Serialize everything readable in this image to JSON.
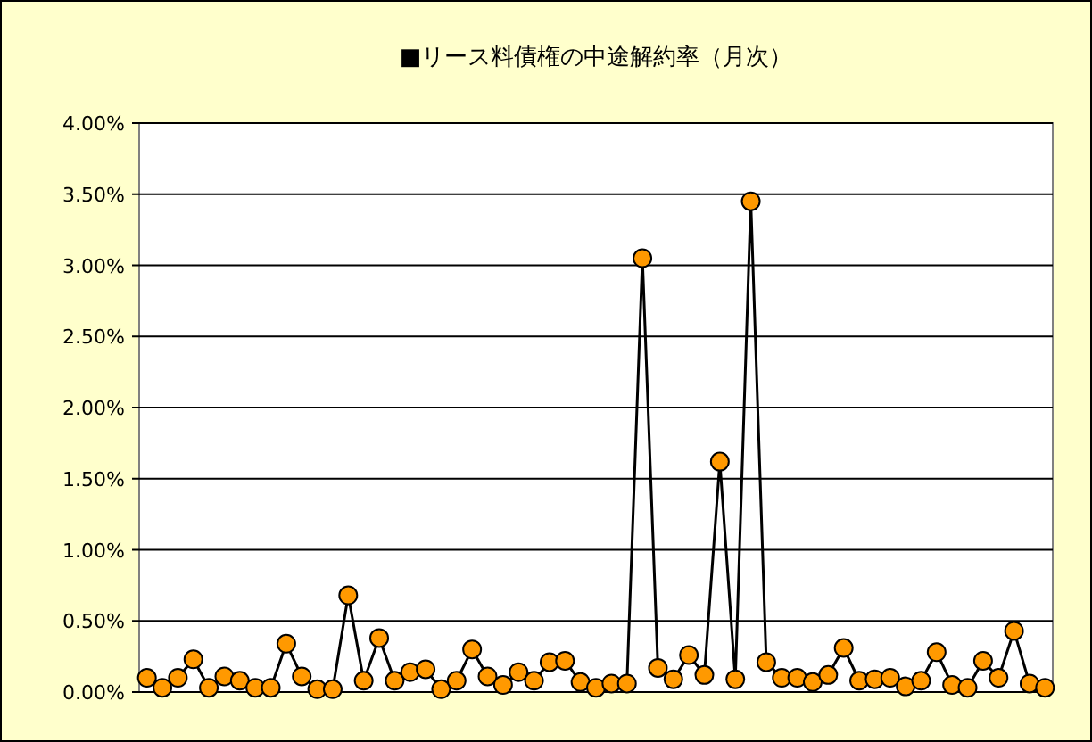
{
  "chart_data": {
    "type": "line",
    "title": "■リース料債権の中途解約率（月次）",
    "categories": [
      null,
      null,
      null,
      null,
      null,
      null,
      null,
      null,
      null,
      null,
      null,
      null,
      null,
      null,
      null,
      null,
      null,
      null,
      null,
      null,
      null,
      null,
      null,
      null,
      null,
      null,
      null,
      null,
      null,
      null,
      null,
      null,
      null,
      null,
      null,
      null,
      null,
      null,
      null,
      null,
      null,
      null,
      null,
      null,
      null,
      null,
      null,
      null,
      null,
      null,
      null,
      null,
      null,
      null,
      null,
      null,
      null,
      null,
      null
    ],
    "series": [
      {
        "color": "#ff9900",
        "values": [
          0.1,
          0.03,
          0.1,
          0.23,
          0.03,
          0.11,
          0.08,
          0.03,
          0.03,
          0.34,
          0.11,
          0.02,
          0.02,
          0.68,
          0.08,
          0.38,
          0.08,
          0.14,
          0.16,
          0.02,
          0.08,
          0.3,
          0.11,
          0.05,
          0.14,
          0.08,
          0.21,
          0.22,
          0.07,
          0.03,
          0.06,
          0.06,
          3.05,
          0.17,
          0.09,
          0.26,
          0.12,
          1.62,
          0.09,
          3.45,
          0.21,
          0.1,
          0.1,
          0.07,
          0.12,
          0.31,
          0.08,
          0.09,
          0.1,
          0.04,
          0.08,
          0.28,
          0.05,
          0.03,
          0.22,
          0.1,
          0.43,
          0.06,
          0.03
        ]
      }
    ],
    "ylim": [
      0,
      4
    ],
    "yticks": [
      {
        "value": 0,
        "label": "0.00%"
      },
      {
        "value": 0.5,
        "label": "0.50%"
      },
      {
        "value": 1,
        "label": "1.00%"
      },
      {
        "value": 1.5,
        "label": "1.50%"
      },
      {
        "value": 2,
        "label": "2.00%"
      },
      {
        "value": 2.5,
        "label": "2.50%"
      },
      {
        "value": 3,
        "label": "3.00%"
      },
      {
        "value": 3.5,
        "label": "3.50%"
      },
      {
        "value": 4,
        "label": "4.00%"
      }
    ],
    "grid": "y",
    "marker": "circle",
    "line_style": "solid",
    "tick_labels": "y"
  }
}
